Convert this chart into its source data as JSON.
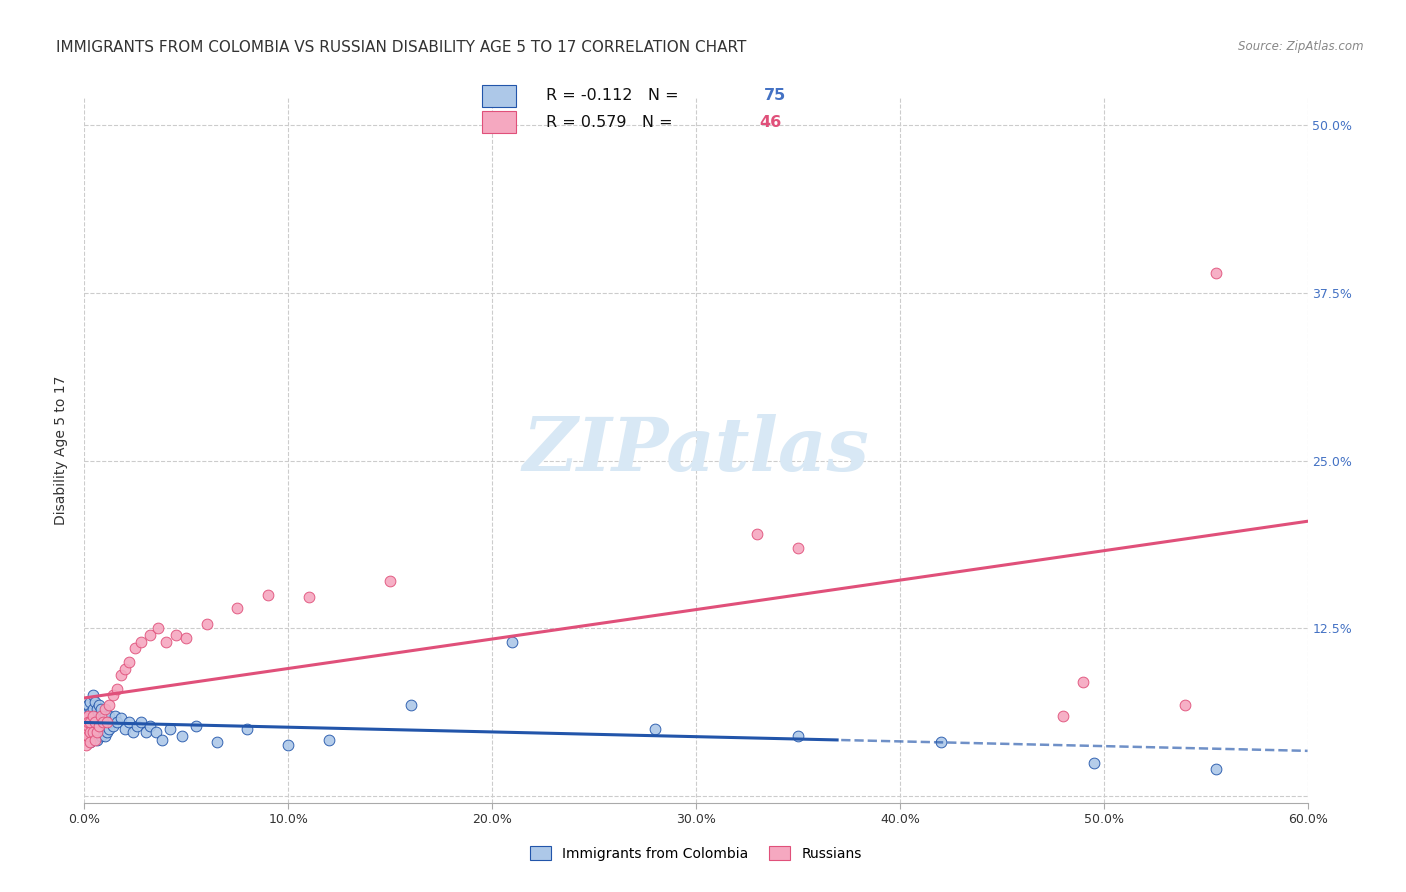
{
  "title": "IMMIGRANTS FROM COLOMBIA VS RUSSIAN DISABILITY AGE 5 TO 17 CORRELATION CHART",
  "source": "Source: ZipAtlas.com",
  "ylabel": "Disability Age 5 to 17",
  "xlim": [
    0,
    0.6
  ],
  "ylim": [
    -0.005,
    0.52
  ],
  "colombia_R": -0.112,
  "colombia_N": 75,
  "russia_R": 0.579,
  "russia_N": 46,
  "colombia_color": "#adc8e8",
  "colombia_line_color": "#2255aa",
  "russia_color": "#f5a8c0",
  "russia_line_color": "#e0507a",
  "background_color": "#ffffff",
  "grid_color": "#cccccc",
  "watermark_color": "#d8e8f5",
  "colombia_x": [
    0.001,
    0.001,
    0.001,
    0.001,
    0.002,
    0.002,
    0.002,
    0.002,
    0.002,
    0.002,
    0.003,
    0.003,
    0.003,
    0.003,
    0.003,
    0.003,
    0.003,
    0.003,
    0.004,
    0.004,
    0.004,
    0.004,
    0.004,
    0.005,
    0.005,
    0.005,
    0.005,
    0.005,
    0.006,
    0.006,
    0.006,
    0.006,
    0.007,
    0.007,
    0.007,
    0.008,
    0.008,
    0.008,
    0.009,
    0.009,
    0.01,
    0.01,
    0.01,
    0.011,
    0.011,
    0.012,
    0.012,
    0.013,
    0.014,
    0.015,
    0.016,
    0.018,
    0.02,
    0.022,
    0.024,
    0.026,
    0.028,
    0.03,
    0.032,
    0.035,
    0.038,
    0.042,
    0.048,
    0.055,
    0.065,
    0.08,
    0.1,
    0.12,
    0.16,
    0.21,
    0.28,
    0.35,
    0.42,
    0.495,
    0.555
  ],
  "colombia_y": [
    0.055,
    0.06,
    0.045,
    0.05,
    0.062,
    0.048,
    0.058,
    0.052,
    0.042,
    0.068,
    0.055,
    0.07,
    0.048,
    0.062,
    0.052,
    0.058,
    0.045,
    0.04,
    0.065,
    0.055,
    0.075,
    0.05,
    0.042,
    0.06,
    0.052,
    0.07,
    0.045,
    0.055,
    0.065,
    0.055,
    0.042,
    0.06,
    0.058,
    0.048,
    0.068,
    0.055,
    0.065,
    0.045,
    0.058,
    0.05,
    0.06,
    0.052,
    0.045,
    0.055,
    0.048,
    0.06,
    0.05,
    0.055,
    0.052,
    0.06,
    0.055,
    0.058,
    0.05,
    0.055,
    0.048,
    0.052,
    0.055,
    0.048,
    0.052,
    0.048,
    0.042,
    0.05,
    0.045,
    0.052,
    0.04,
    0.05,
    0.038,
    0.042,
    0.068,
    0.115,
    0.05,
    0.045,
    0.04,
    0.025,
    0.02
  ],
  "russia_x": [
    0.001,
    0.001,
    0.001,
    0.001,
    0.001,
    0.002,
    0.002,
    0.002,
    0.002,
    0.003,
    0.003,
    0.003,
    0.004,
    0.004,
    0.005,
    0.005,
    0.006,
    0.007,
    0.008,
    0.009,
    0.01,
    0.011,
    0.012,
    0.014,
    0.016,
    0.018,
    0.02,
    0.022,
    0.025,
    0.028,
    0.032,
    0.036,
    0.04,
    0.045,
    0.05,
    0.06,
    0.075,
    0.09,
    0.11,
    0.15,
    0.49,
    0.54,
    0.33,
    0.35,
    0.48,
    0.555
  ],
  "russia_y": [
    0.05,
    0.042,
    0.058,
    0.048,
    0.038,
    0.052,
    0.06,
    0.045,
    0.055,
    0.048,
    0.055,
    0.04,
    0.06,
    0.048,
    0.055,
    0.042,
    0.048,
    0.052,
    0.06,
    0.055,
    0.065,
    0.055,
    0.068,
    0.075,
    0.08,
    0.09,
    0.095,
    0.1,
    0.11,
    0.115,
    0.12,
    0.125,
    0.115,
    0.12,
    0.118,
    0.128,
    0.14,
    0.15,
    0.148,
    0.16,
    0.085,
    0.068,
    0.195,
    0.185,
    0.06,
    0.39
  ],
  "bottom_legend_colombia": "Immigrants from Colombia",
  "bottom_legend_russia": "Russians",
  "title_fontsize": 11,
  "axis_label_fontsize": 10,
  "tick_fontsize": 9,
  "right_tick_color": "#4472c4",
  "ytick_values": [
    0.0,
    0.125,
    0.25,
    0.375,
    0.5
  ],
  "ytick_labels": [
    "",
    "12.5%",
    "25.0%",
    "37.5%",
    "50.0%"
  ],
  "xtick_values": [
    0.0,
    0.1,
    0.2,
    0.3,
    0.4,
    0.5,
    0.6
  ],
  "xtick_labels": [
    "0.0%",
    "10.0%",
    "20.0%",
    "30.0%",
    "40.0%",
    "50.0%",
    "60.0%"
  ]
}
